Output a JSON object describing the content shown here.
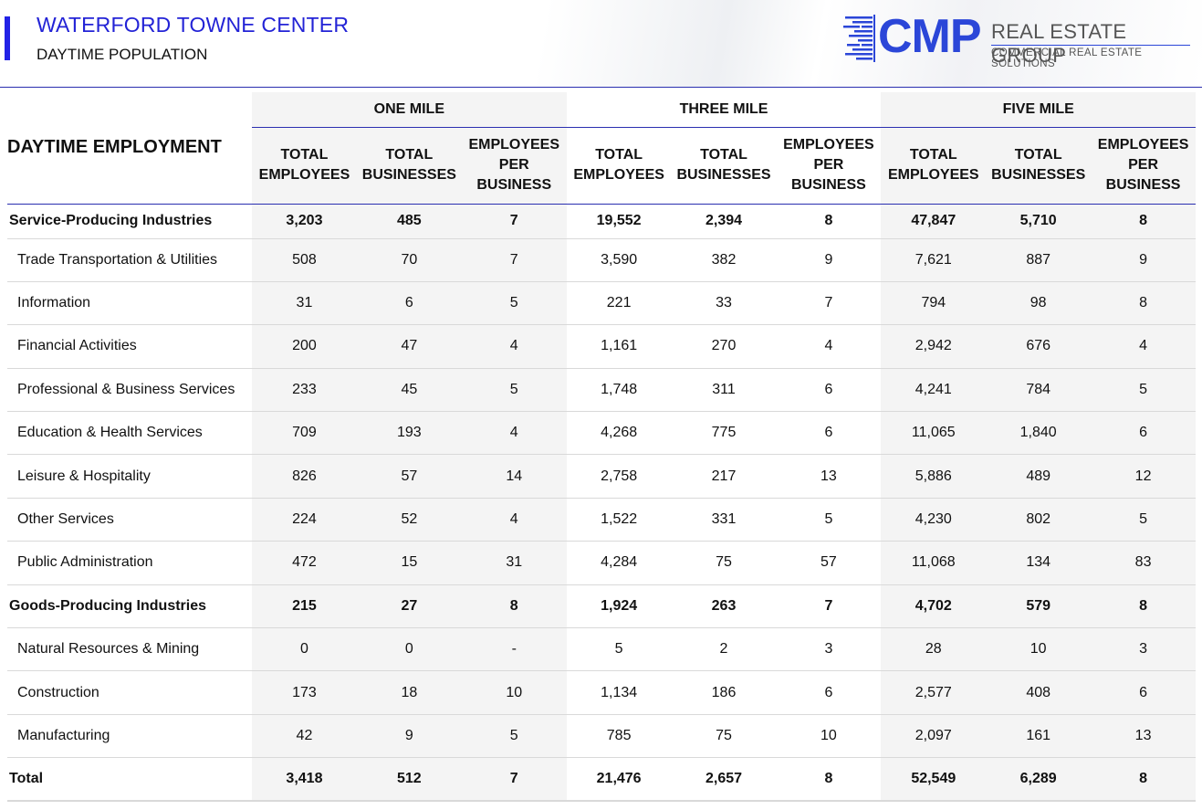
{
  "header": {
    "title": "WATERFORD TOWNE CENTER",
    "subtitle": "DAYTIME POPULATION"
  },
  "logo": {
    "mark": "CMP",
    "name": "REAL ESTATE GROUP",
    "tagline": "COMMERCIAL REAL ESTATE SOLUTIONS",
    "brand_color": "#2b46d8"
  },
  "table": {
    "section_title": "DAYTIME EMPLOYMENT",
    "groups": [
      "ONE MILE",
      "THREE MILE",
      "FIVE MILE"
    ],
    "sub_headers": [
      "TOTAL EMPLOYEES",
      "TOTAL BUSINESSES",
      "EMPLOYEES PER BUSINESS"
    ],
    "rows": [
      {
        "label": "Service-Producing Industries",
        "bold": true,
        "values": [
          "3,203",
          "485",
          "7",
          "19,552",
          "2,394",
          "8",
          "47,847",
          "5,710",
          "8"
        ]
      },
      {
        "label": "Trade Transportation & Utilities",
        "bold": false,
        "values": [
          "508",
          "70",
          "7",
          "3,590",
          "382",
          "9",
          "7,621",
          "887",
          "9"
        ]
      },
      {
        "label": "Information",
        "bold": false,
        "values": [
          "31",
          "6",
          "5",
          "221",
          "33",
          "7",
          "794",
          "98",
          "8"
        ]
      },
      {
        "label": "Financial Activities",
        "bold": false,
        "values": [
          "200",
          "47",
          "4",
          "1,161",
          "270",
          "4",
          "2,942",
          "676",
          "4"
        ]
      },
      {
        "label": "Professional & Business Services",
        "bold": false,
        "values": [
          "233",
          "45",
          "5",
          "1,748",
          "311",
          "6",
          "4,241",
          "784",
          "5"
        ]
      },
      {
        "label": "Education & Health Services",
        "bold": false,
        "values": [
          "709",
          "193",
          "4",
          "4,268",
          "775",
          "6",
          "11,065",
          "1,840",
          "6"
        ]
      },
      {
        "label": "Leisure & Hospitality",
        "bold": false,
        "values": [
          "826",
          "57",
          "14",
          "2,758",
          "217",
          "13",
          "5,886",
          "489",
          "12"
        ]
      },
      {
        "label": "Other Services",
        "bold": false,
        "values": [
          "224",
          "52",
          "4",
          "1,522",
          "331",
          "5",
          "4,230",
          "802",
          "5"
        ]
      },
      {
        "label": "Public Administration",
        "bold": false,
        "values": [
          "472",
          "15",
          "31",
          "4,284",
          "75",
          "57",
          "11,068",
          "134",
          "83"
        ]
      },
      {
        "label": "Goods-Producing Industries",
        "bold": true,
        "values": [
          "215",
          "27",
          "8",
          "1,924",
          "263",
          "7",
          "4,702",
          "579",
          "8"
        ]
      },
      {
        "label": "Natural Resources & Mining",
        "bold": false,
        "values": [
          "0",
          "0",
          "-",
          "5",
          "2",
          "3",
          "28",
          "10",
          "3"
        ]
      },
      {
        "label": "Construction",
        "bold": false,
        "values": [
          "173",
          "18",
          "10",
          "1,134",
          "186",
          "6",
          "2,577",
          "408",
          "6"
        ]
      },
      {
        "label": "Manufacturing",
        "bold": false,
        "values": [
          "42",
          "9",
          "5",
          "785",
          "75",
          "10",
          "2,097",
          "161",
          "13"
        ]
      },
      {
        "label": "Total",
        "bold": true,
        "values": [
          "3,418",
          "512",
          "7",
          "21,476",
          "2,657",
          "8",
          "52,549",
          "6,289",
          "8"
        ]
      }
    ]
  }
}
